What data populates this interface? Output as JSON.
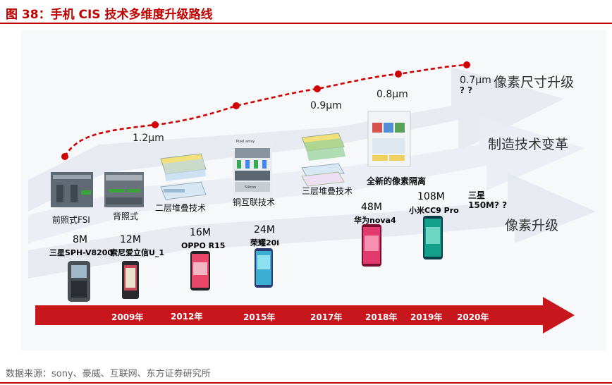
{
  "title": "图 38：手机 CIS 技术多维度升级路线",
  "source": "数据来源：sony、豪威、互联网、东方证券研究所",
  "pixel_sizes": {
    "s12": "1.2μm",
    "s09": "0.9μm",
    "s08": "0.8μm",
    "s07": "0.7μm",
    "qq": "? ?"
  },
  "dimensions": {
    "pixel_size_upgrade": "像素尺寸升级",
    "manufacturing_change": "制造技术变革",
    "pixel_upgrade": "像素升级"
  },
  "technologies": {
    "fsi": "前照式FSI",
    "bsi": "背照式",
    "stack2": "二层堆叠技术",
    "cu": "铜互联技术",
    "stack3": "三层堆叠技术",
    "isolation": "全新的像素隔离"
  },
  "phones": [
    {
      "mp": "8M",
      "name": "三星SPH-V8200"
    },
    {
      "mp": "12M",
      "name": "索尼爱立信U_1"
    },
    {
      "mp": "16M",
      "name": "OPPO R15"
    },
    {
      "mp": "24M",
      "name": "荣耀20i"
    },
    {
      "mp": "48M",
      "name": "华为nova4"
    },
    {
      "mp": "108M",
      "name": "小米CC9 Pro"
    }
  ],
  "future": {
    "line1": "三星",
    "line2": "150M? ?"
  },
  "years": [
    "2009年",
    "2012年",
    "2015年",
    "2017年",
    "2018年",
    "2019年",
    "2020年"
  ],
  "image_texts": {
    "pixel_array": "Pixel array",
    "silicon": "Silicon"
  },
  "colors": {
    "accent": "#c00000",
    "arrow": "#e1e6ee"
  }
}
